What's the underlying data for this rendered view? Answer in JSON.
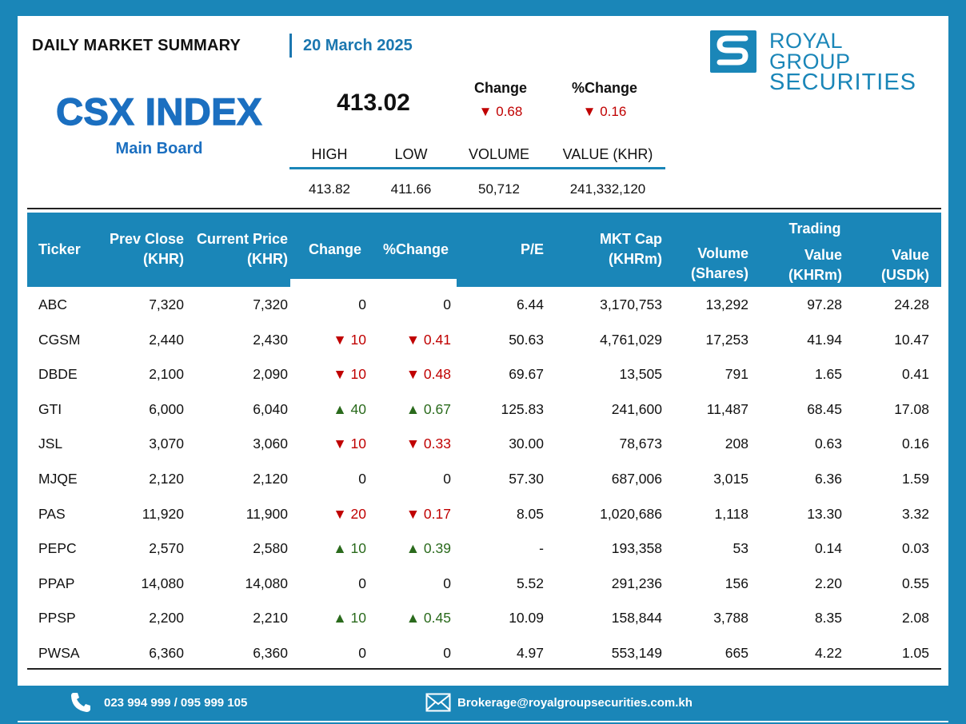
{
  "header": {
    "title": "DAILY MARKET SUMMARY",
    "date": "20 March 2025",
    "brand_line1": "ROYAL GROUP",
    "brand_line2": "SECURITIES"
  },
  "index": {
    "name": "CSX INDEX",
    "board": "Main Board",
    "value": "413.02",
    "change_label": "Change",
    "change_value": "▼ 0.68",
    "pct_change_label": "%Change",
    "pct_change_value": "▼ 0.16"
  },
  "summary": {
    "labels": [
      "HIGH",
      "LOW",
      "VOLUME",
      "VALUE (KHR)"
    ],
    "values": [
      "413.82",
      "411.66",
      "50,712",
      "241,332,120"
    ]
  },
  "table": {
    "headers": {
      "ticker": "Ticker",
      "prev_close_1": "Prev Close",
      "prev_close_2": "(KHR)",
      "current_price_1": "Current Price",
      "current_price_2": "(KHR)",
      "change": "Change",
      "pct_change": "%Change",
      "pe": "P/E",
      "mkt_cap_1": "MKT Cap",
      "mkt_cap_2": "(KHRm)",
      "volume_1": "Volume",
      "volume_2": "(Shares)",
      "trading": "Trading",
      "value_khrm_1": "Value",
      "value_khrm_2": "(KHRm)",
      "value_usdk_1": "Value",
      "value_usdk_2": "(USDk)"
    },
    "rows": [
      {
        "ticker": "ABC",
        "prev": "7,320",
        "curr": "7,320",
        "chg": "0",
        "pct": "0",
        "dir": "flat",
        "pe": "6.44",
        "cap": "3,170,753",
        "vol": "13,292",
        "vkhr": "97.28",
        "vusd": "24.28"
      },
      {
        "ticker": "CGSM",
        "prev": "2,440",
        "curr": "2,430",
        "chg": "▼ 10",
        "pct": "▼ 0.41",
        "dir": "down",
        "pe": "50.63",
        "cap": "4,761,029",
        "vol": "17,253",
        "vkhr": "41.94",
        "vusd": "10.47"
      },
      {
        "ticker": "DBDE",
        "prev": "2,100",
        "curr": "2,090",
        "chg": "▼ 10",
        "pct": "▼ 0.48",
        "dir": "down",
        "pe": "69.67",
        "cap": "13,505",
        "vol": "791",
        "vkhr": "1.65",
        "vusd": "0.41"
      },
      {
        "ticker": "GTI",
        "prev": "6,000",
        "curr": "6,040",
        "chg": "▲ 40",
        "pct": "▲ 0.67",
        "dir": "up",
        "pe": "125.83",
        "cap": "241,600",
        "vol": "11,487",
        "vkhr": "68.45",
        "vusd": "17.08"
      },
      {
        "ticker": "JSL",
        "prev": "3,070",
        "curr": "3,060",
        "chg": "▼ 10",
        "pct": "▼ 0.33",
        "dir": "down",
        "pe": "30.00",
        "cap": "78,673",
        "vol": "208",
        "vkhr": "0.63",
        "vusd": "0.16"
      },
      {
        "ticker": "MJQE",
        "prev": "2,120",
        "curr": "2,120",
        "chg": "0",
        "pct": "0",
        "dir": "flat",
        "pe": "57.30",
        "cap": "687,006",
        "vol": "3,015",
        "vkhr": "6.36",
        "vusd": "1.59"
      },
      {
        "ticker": "PAS",
        "prev": "11,920",
        "curr": "11,900",
        "chg": "▼ 20",
        "pct": "▼ 0.17",
        "dir": "down",
        "pe": "8.05",
        "cap": "1,020,686",
        "vol": "1,118",
        "vkhr": "13.30",
        "vusd": "3.32"
      },
      {
        "ticker": "PEPC",
        "prev": "2,570",
        "curr": "2,580",
        "chg": "▲ 10",
        "pct": "▲ 0.39",
        "dir": "up",
        "pe": "-",
        "cap": "193,358",
        "vol": "53",
        "vkhr": "0.14",
        "vusd": "0.03"
      },
      {
        "ticker": "PPAP",
        "prev": "14,080",
        "curr": "14,080",
        "chg": "0",
        "pct": "0",
        "dir": "flat",
        "pe": "5.52",
        "cap": "291,236",
        "vol": "156",
        "vkhr": "2.20",
        "vusd": "0.55"
      },
      {
        "ticker": "PPSP",
        "prev": "2,200",
        "curr": "2,210",
        "chg": "▲ 10",
        "pct": "▲ 0.45",
        "dir": "up",
        "pe": "10.09",
        "cap": "158,844",
        "vol": "3,788",
        "vkhr": "8.35",
        "vusd": "2.08"
      },
      {
        "ticker": "PWSA",
        "prev": "6,360",
        "curr": "6,360",
        "chg": "0",
        "pct": "0",
        "dir": "flat",
        "pe": "4.97",
        "cap": "553,149",
        "vol": "665",
        "vkhr": "4.22",
        "vusd": "1.05"
      }
    ]
  },
  "footer": {
    "phone": "023 994 999 / 095 999 105",
    "email": "Brokerage@royalgroupsecurities.com.kh"
  },
  "colors": {
    "brand_blue": "#1a86b8",
    "title_blue": "#1b6fc0",
    "down_red": "#c00000",
    "up_green": "#2a6a1c"
  },
  "icons": [
    "phone-icon",
    "mail-icon",
    "royal-group-logo-icon"
  ]
}
